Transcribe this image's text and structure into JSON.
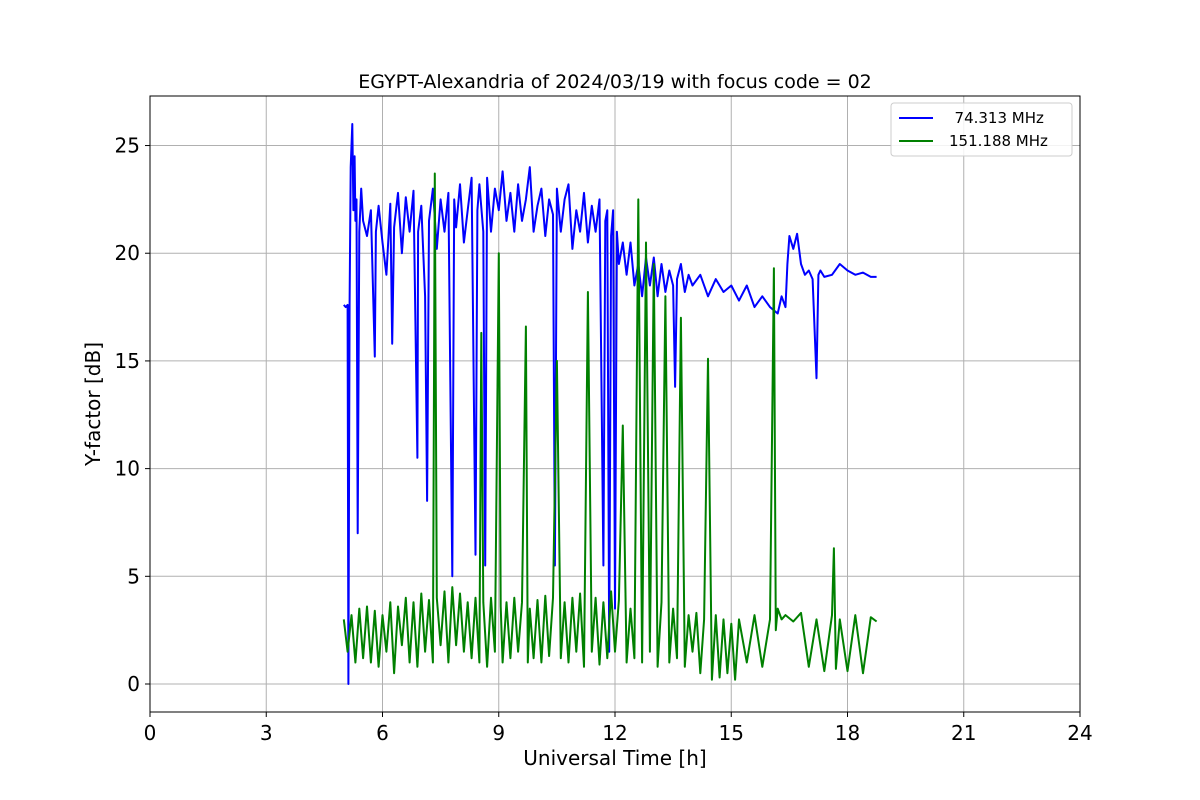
{
  "chart_data": {
    "type": "line",
    "title": "EGYPT-Alexandria of 2024/03/19 with focus code = 02",
    "xlabel": "Universal Time [h]",
    "ylabel": "Y-factor [dB]",
    "xlim": [
      0,
      24
    ],
    "ylim": [
      -1.3,
      27.3
    ],
    "xticks": [
      0,
      3,
      6,
      9,
      12,
      15,
      18,
      21,
      24
    ],
    "yticks": [
      0,
      5,
      10,
      15,
      20,
      25
    ],
    "grid": true,
    "legend_position": "top-right",
    "series": [
      {
        "name": "  74.313 MHz",
        "color": "#0000ff",
        "x": [
          5.0,
          5.05,
          5.1,
          5.12,
          5.15,
          5.18,
          5.22,
          5.25,
          5.28,
          5.3,
          5.33,
          5.36,
          5.4,
          5.45,
          5.5,
          5.6,
          5.7,
          5.8,
          5.83,
          5.9,
          6.0,
          6.1,
          6.2,
          6.25,
          6.3,
          6.4,
          6.5,
          6.6,
          6.7,
          6.8,
          6.9,
          6.92,
          7.0,
          7.1,
          7.15,
          7.2,
          7.3,
          7.4,
          7.5,
          7.6,
          7.7,
          7.8,
          7.85,
          7.9,
          8.0,
          8.1,
          8.2,
          8.3,
          8.4,
          8.45,
          8.5,
          8.6,
          8.65,
          8.7,
          8.8,
          8.9,
          9.0,
          9.1,
          9.2,
          9.3,
          9.4,
          9.5,
          9.6,
          9.7,
          9.8,
          9.9,
          10.0,
          10.1,
          10.2,
          10.3,
          10.4,
          10.45,
          10.5,
          10.6,
          10.7,
          10.8,
          10.9,
          11.0,
          11.1,
          11.2,
          11.3,
          11.4,
          11.5,
          11.6,
          11.7,
          11.75,
          11.8,
          11.85,
          11.9,
          11.95,
          12.0,
          12.05,
          12.1,
          12.2,
          12.3,
          12.4,
          12.5,
          12.6,
          12.7,
          12.8,
          12.9,
          13.0,
          13.1,
          13.2,
          13.3,
          13.4,
          13.5,
          13.55,
          13.6,
          13.7,
          13.8,
          13.9,
          14.0,
          14.2,
          14.4,
          14.6,
          14.8,
          15.0,
          15.2,
          15.4,
          15.6,
          15.8,
          16.0,
          16.2,
          16.3,
          16.4,
          16.45,
          16.5,
          16.6,
          16.7,
          16.8,
          16.9,
          17.0,
          17.1,
          17.2,
          17.25,
          17.3,
          17.4,
          17.6,
          17.8,
          18.0,
          18.2,
          18.4,
          18.6,
          18.75
        ],
        "y": [
          17.6,
          17.5,
          17.6,
          0.0,
          17.7,
          24.0,
          26.0,
          22.0,
          24.5,
          21.5,
          22.5,
          7.0,
          21.0,
          23.0,
          21.5,
          20.8,
          22.0,
          15.2,
          21.0,
          22.2,
          20.5,
          19.0,
          22.3,
          15.8,
          21.2,
          22.8,
          20.0,
          22.6,
          21.0,
          22.9,
          10.5,
          21.0,
          22.2,
          18.0,
          8.5,
          21.5,
          23.0,
          20.2,
          22.5,
          21.0,
          22.8,
          5.0,
          22.5,
          21.2,
          23.2,
          20.5,
          22.0,
          23.5,
          6.0,
          22.0,
          23.2,
          21.0,
          5.5,
          23.5,
          21.0,
          23.0,
          22.0,
          23.8,
          21.5,
          22.8,
          21.0,
          23.2,
          21.5,
          22.5,
          24.0,
          21.0,
          22.2,
          23.0,
          20.8,
          22.5,
          21.8,
          5.5,
          23.0,
          21.0,
          22.5,
          23.2,
          20.2,
          22.0,
          21.0,
          22.8,
          20.5,
          22.2,
          21.0,
          22.5,
          5.5,
          21.5,
          22.0,
          1.5,
          20.8,
          22.0,
          3.5,
          21.0,
          19.5,
          20.5,
          19.0,
          20.5,
          18.5,
          19.5,
          18.0,
          19.8,
          18.5,
          19.8,
          18.0,
          19.5,
          18.2,
          19.2,
          18.5,
          13.8,
          18.8,
          19.5,
          18.2,
          19.0,
          18.5,
          19.0,
          18.0,
          18.8,
          18.2,
          18.5,
          17.8,
          18.5,
          17.5,
          18.0,
          17.5,
          17.2,
          18.0,
          17.5,
          19.5,
          20.8,
          20.2,
          20.9,
          19.5,
          19.0,
          19.2,
          18.8,
          14.2,
          19.0,
          19.2,
          18.9,
          19.0,
          19.5,
          19.2,
          19.0,
          19.1,
          18.9,
          18.9
        ]
      },
      {
        "name": "151.188 MHz",
        "color": "#008000",
        "x": [
          5.0,
          5.1,
          5.2,
          5.3,
          5.4,
          5.5,
          5.6,
          5.7,
          5.8,
          5.9,
          6.0,
          6.1,
          6.2,
          6.3,
          6.4,
          6.5,
          6.6,
          6.7,
          6.8,
          6.9,
          7.0,
          7.1,
          7.2,
          7.3,
          7.35,
          7.4,
          7.5,
          7.6,
          7.7,
          7.8,
          7.9,
          8.0,
          8.1,
          8.2,
          8.3,
          8.4,
          8.5,
          8.55,
          8.6,
          8.7,
          8.8,
          8.9,
          9.0,
          9.05,
          9.1,
          9.2,
          9.3,
          9.4,
          9.5,
          9.6,
          9.7,
          9.75,
          9.8,
          9.9,
          10.0,
          10.1,
          10.2,
          10.3,
          10.4,
          10.5,
          10.6,
          10.7,
          10.8,
          10.9,
          11.0,
          11.1,
          11.2,
          11.3,
          11.4,
          11.5,
          11.6,
          11.7,
          11.8,
          11.9,
          12.0,
          12.1,
          12.2,
          12.3,
          12.4,
          12.5,
          12.6,
          12.7,
          12.8,
          12.9,
          13.0,
          13.1,
          13.2,
          13.3,
          13.4,
          13.5,
          13.6,
          13.7,
          13.8,
          13.9,
          14.0,
          14.1,
          14.2,
          14.3,
          14.4,
          14.5,
          14.6,
          14.7,
          14.8,
          14.9,
          15.0,
          15.1,
          15.2,
          15.4,
          15.6,
          15.8,
          16.0,
          16.1,
          16.15,
          16.2,
          16.3,
          16.4,
          16.6,
          16.8,
          17.0,
          17.2,
          17.4,
          17.6,
          17.65,
          17.7,
          17.8,
          18.0,
          18.2,
          18.4,
          18.6,
          18.75
        ],
        "y": [
          3.0,
          1.5,
          3.2,
          1.0,
          3.5,
          1.2,
          3.6,
          1.0,
          3.4,
          0.8,
          3.2,
          1.5,
          3.8,
          0.5,
          3.6,
          1.8,
          4.0,
          1.0,
          3.8,
          0.8,
          4.2,
          1.5,
          3.9,
          1.0,
          23.7,
          4.0,
          1.8,
          4.3,
          1.0,
          4.5,
          1.8,
          4.2,
          1.5,
          3.8,
          1.2,
          4.0,
          1.0,
          16.3,
          3.8,
          0.8,
          4.0,
          1.5,
          20.0,
          3.6,
          1.0,
          3.8,
          1.2,
          4.0,
          1.5,
          3.8,
          16.6,
          1.0,
          3.5,
          1.2,
          3.9,
          1.0,
          4.1,
          1.3,
          4.0,
          15.0,
          1.2,
          3.8,
          1.0,
          4.0,
          1.5,
          4.2,
          0.8,
          18.2,
          1.5,
          4.0,
          0.9,
          3.8,
          1.2,
          4.3,
          1.5,
          3.9,
          12.0,
          1.0,
          3.5,
          1.2,
          22.5,
          1.0,
          20.5,
          1.5,
          19.5,
          0.8,
          3.8,
          18.0,
          1.0,
          3.5,
          1.2,
          17.0,
          0.8,
          3.2,
          1.5,
          3.3,
          0.5,
          3.0,
          15.1,
          0.2,
          3.2,
          0.3,
          3.0,
          0.5,
          2.8,
          0.2,
          3.0,
          1.0,
          3.2,
          0.8,
          3.0,
          19.3,
          2.5,
          3.5,
          3.0,
          3.2,
          2.9,
          3.3,
          0.8,
          3.0,
          0.6,
          3.2,
          6.3,
          0.7,
          3.0,
          0.6,
          3.2,
          0.5,
          3.1,
          2.9
        ]
      }
    ]
  }
}
